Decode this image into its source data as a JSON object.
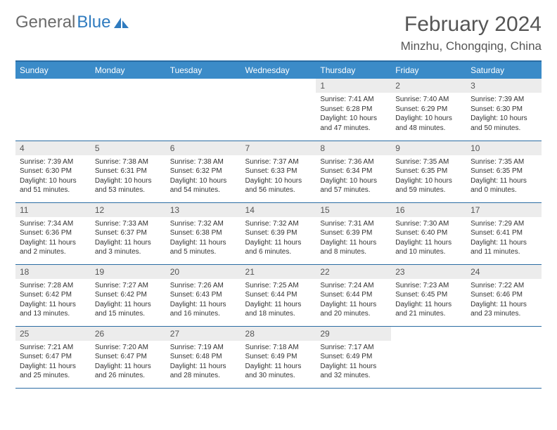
{
  "logo": {
    "text_gray": "General",
    "text_blue": "Blue"
  },
  "header": {
    "month_title": "February 2024",
    "location": "Minzhu, Chongqing, China"
  },
  "colors": {
    "header_bg": "#3b8bc8",
    "header_border": "#2a6ca3",
    "daynum_bg": "#ececec",
    "text_dark": "#333333",
    "text_mid": "#555555",
    "page_bg": "#ffffff"
  },
  "weekdays": [
    "Sunday",
    "Monday",
    "Tuesday",
    "Wednesday",
    "Thursday",
    "Friday",
    "Saturday"
  ],
  "weeks": [
    [
      null,
      null,
      null,
      null,
      {
        "n": "1",
        "sr": "Sunrise: 7:41 AM",
        "ss": "Sunset: 6:28 PM",
        "dl1": "Daylight: 10 hours",
        "dl2": "and 47 minutes."
      },
      {
        "n": "2",
        "sr": "Sunrise: 7:40 AM",
        "ss": "Sunset: 6:29 PM",
        "dl1": "Daylight: 10 hours",
        "dl2": "and 48 minutes."
      },
      {
        "n": "3",
        "sr": "Sunrise: 7:39 AM",
        "ss": "Sunset: 6:30 PM",
        "dl1": "Daylight: 10 hours",
        "dl2": "and 50 minutes."
      }
    ],
    [
      {
        "n": "4",
        "sr": "Sunrise: 7:39 AM",
        "ss": "Sunset: 6:30 PM",
        "dl1": "Daylight: 10 hours",
        "dl2": "and 51 minutes."
      },
      {
        "n": "5",
        "sr": "Sunrise: 7:38 AM",
        "ss": "Sunset: 6:31 PM",
        "dl1": "Daylight: 10 hours",
        "dl2": "and 53 minutes."
      },
      {
        "n": "6",
        "sr": "Sunrise: 7:38 AM",
        "ss": "Sunset: 6:32 PM",
        "dl1": "Daylight: 10 hours",
        "dl2": "and 54 minutes."
      },
      {
        "n": "7",
        "sr": "Sunrise: 7:37 AM",
        "ss": "Sunset: 6:33 PM",
        "dl1": "Daylight: 10 hours",
        "dl2": "and 56 minutes."
      },
      {
        "n": "8",
        "sr": "Sunrise: 7:36 AM",
        "ss": "Sunset: 6:34 PM",
        "dl1": "Daylight: 10 hours",
        "dl2": "and 57 minutes."
      },
      {
        "n": "9",
        "sr": "Sunrise: 7:35 AM",
        "ss": "Sunset: 6:35 PM",
        "dl1": "Daylight: 10 hours",
        "dl2": "and 59 minutes."
      },
      {
        "n": "10",
        "sr": "Sunrise: 7:35 AM",
        "ss": "Sunset: 6:35 PM",
        "dl1": "Daylight: 11 hours",
        "dl2": "and 0 minutes."
      }
    ],
    [
      {
        "n": "11",
        "sr": "Sunrise: 7:34 AM",
        "ss": "Sunset: 6:36 PM",
        "dl1": "Daylight: 11 hours",
        "dl2": "and 2 minutes."
      },
      {
        "n": "12",
        "sr": "Sunrise: 7:33 AM",
        "ss": "Sunset: 6:37 PM",
        "dl1": "Daylight: 11 hours",
        "dl2": "and 3 minutes."
      },
      {
        "n": "13",
        "sr": "Sunrise: 7:32 AM",
        "ss": "Sunset: 6:38 PM",
        "dl1": "Daylight: 11 hours",
        "dl2": "and 5 minutes."
      },
      {
        "n": "14",
        "sr": "Sunrise: 7:32 AM",
        "ss": "Sunset: 6:39 PM",
        "dl1": "Daylight: 11 hours",
        "dl2": "and 6 minutes."
      },
      {
        "n": "15",
        "sr": "Sunrise: 7:31 AM",
        "ss": "Sunset: 6:39 PM",
        "dl1": "Daylight: 11 hours",
        "dl2": "and 8 minutes."
      },
      {
        "n": "16",
        "sr": "Sunrise: 7:30 AM",
        "ss": "Sunset: 6:40 PM",
        "dl1": "Daylight: 11 hours",
        "dl2": "and 10 minutes."
      },
      {
        "n": "17",
        "sr": "Sunrise: 7:29 AM",
        "ss": "Sunset: 6:41 PM",
        "dl1": "Daylight: 11 hours",
        "dl2": "and 11 minutes."
      }
    ],
    [
      {
        "n": "18",
        "sr": "Sunrise: 7:28 AM",
        "ss": "Sunset: 6:42 PM",
        "dl1": "Daylight: 11 hours",
        "dl2": "and 13 minutes."
      },
      {
        "n": "19",
        "sr": "Sunrise: 7:27 AM",
        "ss": "Sunset: 6:42 PM",
        "dl1": "Daylight: 11 hours",
        "dl2": "and 15 minutes."
      },
      {
        "n": "20",
        "sr": "Sunrise: 7:26 AM",
        "ss": "Sunset: 6:43 PM",
        "dl1": "Daylight: 11 hours",
        "dl2": "and 16 minutes."
      },
      {
        "n": "21",
        "sr": "Sunrise: 7:25 AM",
        "ss": "Sunset: 6:44 PM",
        "dl1": "Daylight: 11 hours",
        "dl2": "and 18 minutes."
      },
      {
        "n": "22",
        "sr": "Sunrise: 7:24 AM",
        "ss": "Sunset: 6:44 PM",
        "dl1": "Daylight: 11 hours",
        "dl2": "and 20 minutes."
      },
      {
        "n": "23",
        "sr": "Sunrise: 7:23 AM",
        "ss": "Sunset: 6:45 PM",
        "dl1": "Daylight: 11 hours",
        "dl2": "and 21 minutes."
      },
      {
        "n": "24",
        "sr": "Sunrise: 7:22 AM",
        "ss": "Sunset: 6:46 PM",
        "dl1": "Daylight: 11 hours",
        "dl2": "and 23 minutes."
      }
    ],
    [
      {
        "n": "25",
        "sr": "Sunrise: 7:21 AM",
        "ss": "Sunset: 6:47 PM",
        "dl1": "Daylight: 11 hours",
        "dl2": "and 25 minutes."
      },
      {
        "n": "26",
        "sr": "Sunrise: 7:20 AM",
        "ss": "Sunset: 6:47 PM",
        "dl1": "Daylight: 11 hours",
        "dl2": "and 26 minutes."
      },
      {
        "n": "27",
        "sr": "Sunrise: 7:19 AM",
        "ss": "Sunset: 6:48 PM",
        "dl1": "Daylight: 11 hours",
        "dl2": "and 28 minutes."
      },
      {
        "n": "28",
        "sr": "Sunrise: 7:18 AM",
        "ss": "Sunset: 6:49 PM",
        "dl1": "Daylight: 11 hours",
        "dl2": "and 30 minutes."
      },
      {
        "n": "29",
        "sr": "Sunrise: 7:17 AM",
        "ss": "Sunset: 6:49 PM",
        "dl1": "Daylight: 11 hours",
        "dl2": "and 32 minutes."
      },
      null,
      null
    ]
  ]
}
